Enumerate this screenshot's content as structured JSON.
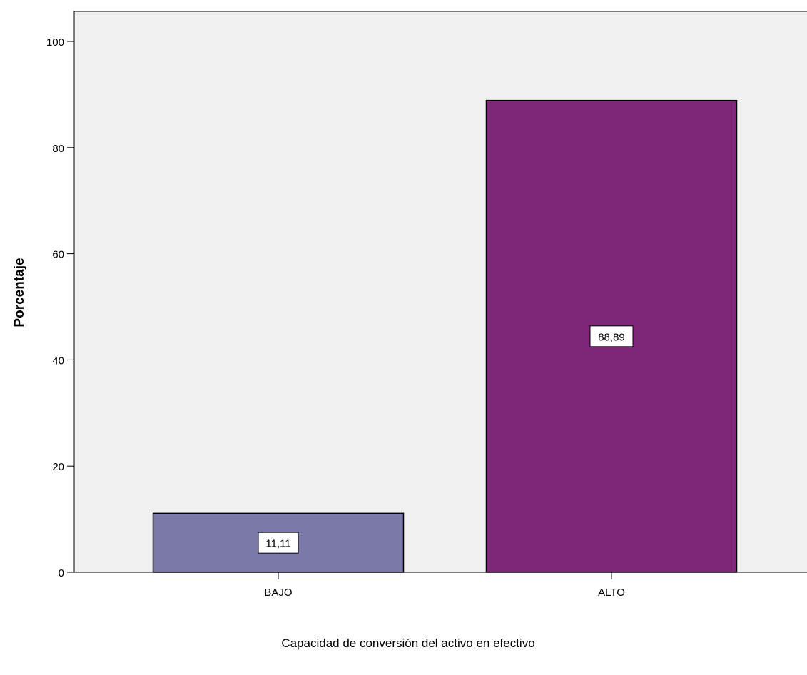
{
  "chart_data": {
    "type": "bar",
    "title": "",
    "xlabel": "Capacidad de conversión del activo en efectivo",
    "ylabel": "Porcentaje",
    "categories": [
      "BAJO",
      "ALTO"
    ],
    "values": [
      11.11,
      88.89
    ],
    "data_labels": [
      "11,11",
      "88,89"
    ],
    "ylim": [
      0,
      100
    ],
    "yticks": [
      0,
      20,
      40,
      60,
      80,
      100
    ],
    "ytick_labels": [
      "0",
      "20",
      "40",
      "60",
      "80",
      "100"
    ],
    "grid": false,
    "legend": "none",
    "colors": {
      "plot_background": "#f0f0f0",
      "bars": [
        "#7b79a8",
        "#7e2778"
      ],
      "bar_border": "#000000",
      "label_box": "#ffffff"
    }
  }
}
